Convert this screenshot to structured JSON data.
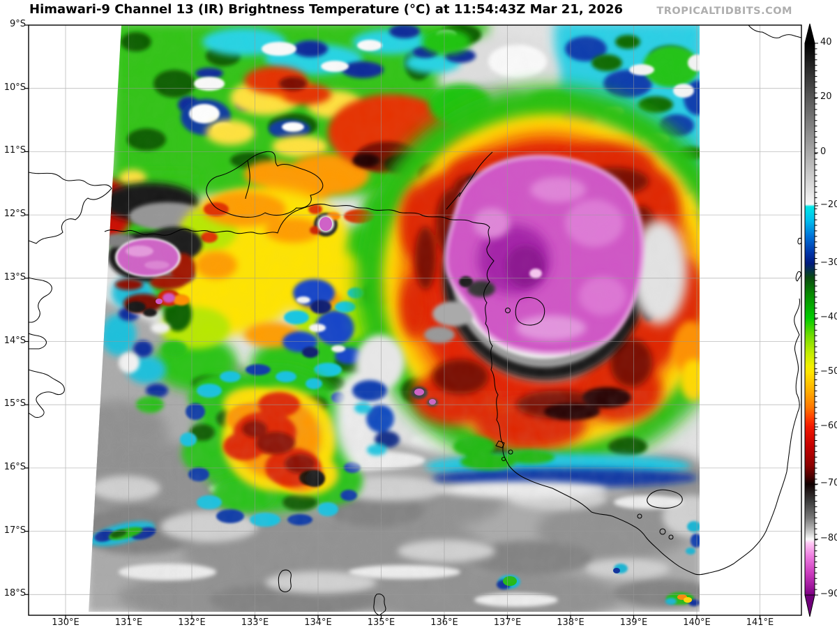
{
  "header": {
    "title": "Himawari-9 Channel 13 (IR) Brightness Temperature (°C) at 11:54:43Z Mar 21, 2026",
    "watermark": "TROPICALTIDBITS.COM"
  },
  "map": {
    "x_axis": {
      "tick_labels": [
        "130°E",
        "131°E",
        "132°E",
        "133°E",
        "134°E",
        "135°E",
        "136°E",
        "137°E",
        "138°E",
        "139°E",
        "140°E",
        "141°E"
      ]
    },
    "y_axis": {
      "tick_labels": [
        "9°S",
        "10°S",
        "11°S",
        "12°S",
        "13°S",
        "14°S",
        "15°S",
        "16°S",
        "17°S",
        "18°S"
      ]
    }
  },
  "colorbar": {
    "tick_labels": [
      "40",
      "20",
      "0",
      "−20",
      "−30",
      "−40",
      "−50",
      "−60",
      "−70",
      "−80",
      "−90"
    ],
    "palette_stops": [
      {
        "value": 40,
        "color": "#000000"
      },
      {
        "value": 20,
        "color": "#575757"
      },
      {
        "value": 0,
        "color": "#a9a9a9"
      },
      {
        "value": -19,
        "color": "#f8f8f8"
      },
      {
        "value": -20,
        "color": "#00e6e6"
      },
      {
        "value": -30,
        "color": "#001a7e"
      },
      {
        "value": -40,
        "color": "#00cc00"
      },
      {
        "value": -50,
        "color": "#ffe400"
      },
      {
        "value": -60,
        "color": "#f21800"
      },
      {
        "value": -70,
        "color": "#0f0000"
      },
      {
        "value": -80,
        "color": "#fbfbfb"
      },
      {
        "value": -90,
        "color": "#7c0082"
      }
    ]
  }
}
